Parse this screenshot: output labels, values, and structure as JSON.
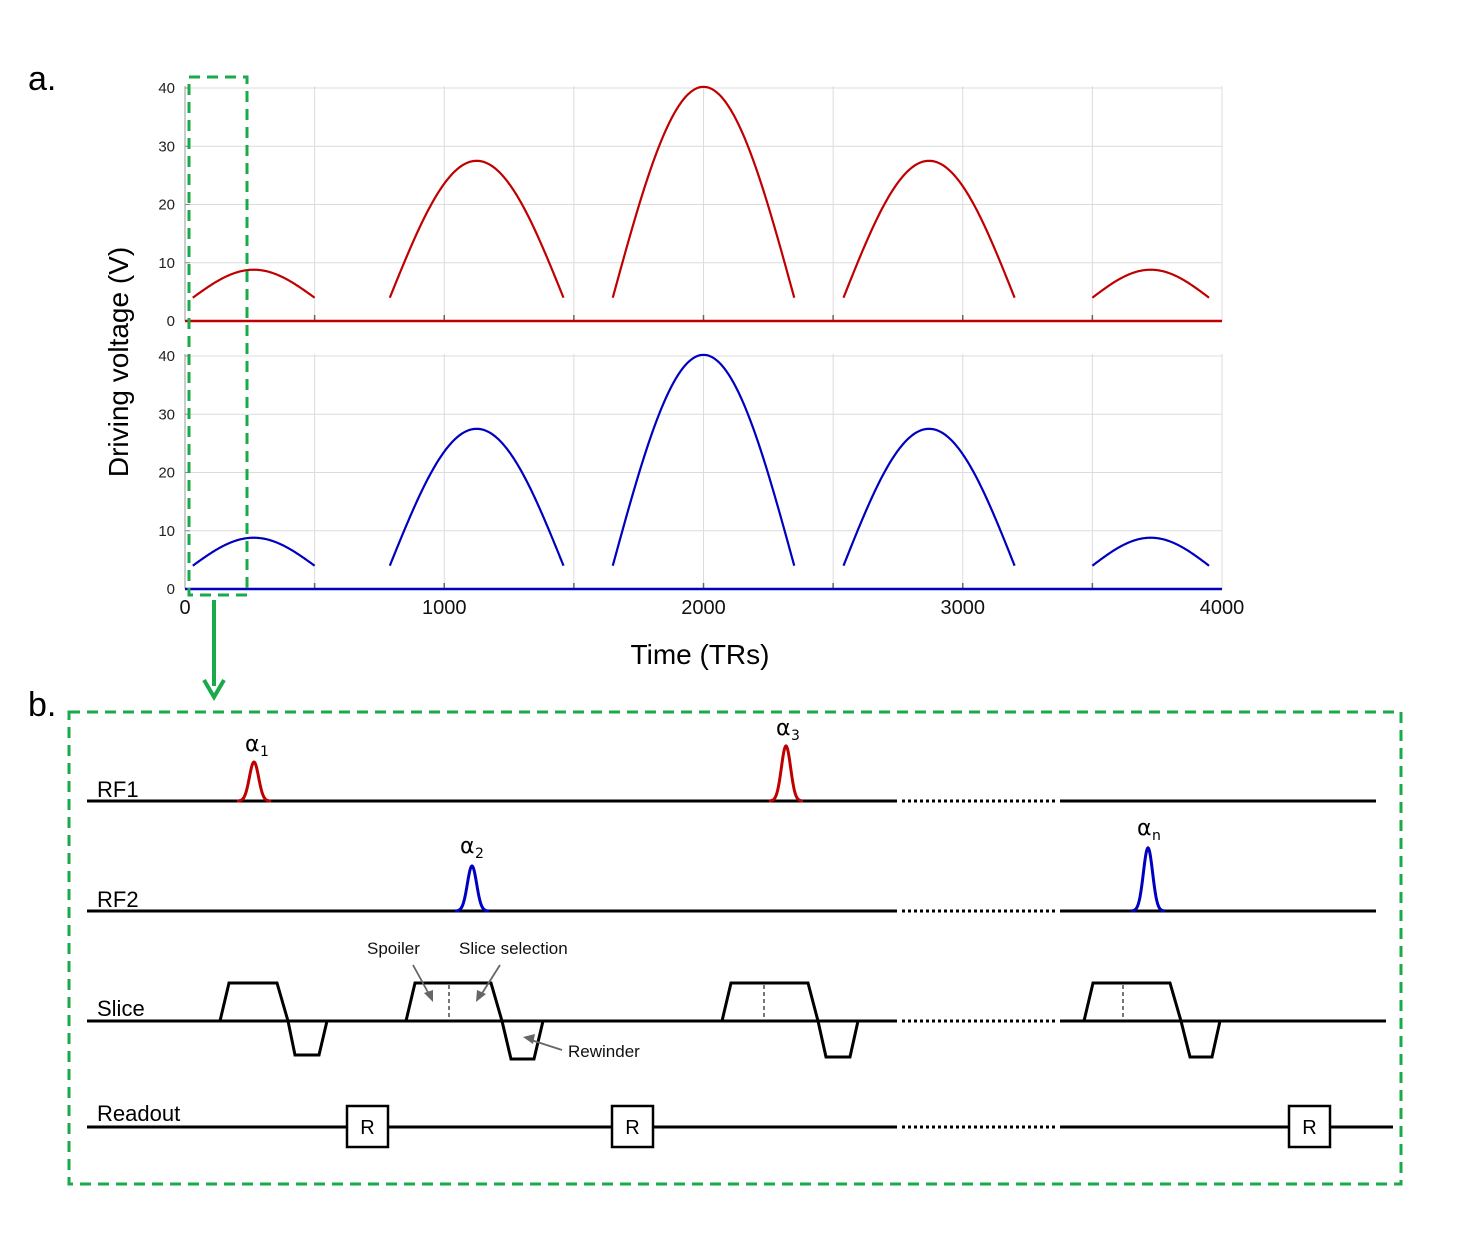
{
  "panel_a": {
    "label": "a.",
    "ylabel": "Driving voltage (V)",
    "xlabel": "Time (TRs)",
    "chart_data": [
      {
        "type": "line",
        "series": [
          {
            "color": "#c00000",
            "segments": [
              {
                "x_start": 30,
                "x_end": 500,
                "y_peak": 8.8,
                "y_edge": 4.0
              },
              {
                "x_start": 790,
                "x_end": 1460,
                "y_peak": 27.5,
                "y_edge": 4.0
              },
              {
                "x_start": 1650,
                "x_end": 2350,
                "y_peak": 40.2,
                "y_edge": 4.0
              },
              {
                "x_start": 2540,
                "x_end": 3200,
                "y_peak": 27.5,
                "y_edge": 4.0
              },
              {
                "x_start": 3500,
                "x_end": 3950,
                "y_peak": 8.8,
                "y_edge": 4.0
              }
            ]
          }
        ],
        "ylim": [
          0,
          40
        ],
        "yticks": [
          "0",
          "10",
          "20",
          "30",
          "40"
        ],
        "xlim": [
          0,
          4000
        ],
        "grid": true
      },
      {
        "type": "line",
        "series": [
          {
            "color": "#0000c0",
            "segments": [
              {
                "x_start": 30,
                "x_end": 500,
                "y_peak": 8.8,
                "y_edge": 4.0
              },
              {
                "x_start": 790,
                "x_end": 1460,
                "y_peak": 27.5,
                "y_edge": 4.0
              },
              {
                "x_start": 1650,
                "x_end": 2350,
                "y_peak": 40.2,
                "y_edge": 4.0
              },
              {
                "x_start": 2540,
                "x_end": 3200,
                "y_peak": 27.5,
                "y_edge": 4.0
              },
              {
                "x_start": 3500,
                "x_end": 3950,
                "y_peak": 8.8,
                "y_edge": 4.0
              }
            ]
          }
        ],
        "ylim": [
          0,
          40
        ],
        "yticks": [
          "0",
          "10",
          "20",
          "30",
          "40"
        ],
        "xlim": [
          0,
          4000
        ],
        "xticks": [
          "0",
          "1000",
          "2000",
          "3000",
          "4000"
        ],
        "grid": true
      }
    ]
  },
  "panel_b": {
    "label": "b.",
    "rows": {
      "rf1": "RF1",
      "rf2": "RF2",
      "slice": "Slice",
      "readout": "Readout"
    },
    "pulses": [
      {
        "symbol": "α",
        "sub": "1",
        "color": "#c00000"
      },
      {
        "symbol": "α",
        "sub": "2",
        "color": "#0000c0"
      },
      {
        "symbol": "α",
        "sub": "3",
        "color": "#c00000"
      },
      {
        "symbol": "α",
        "sub": "n",
        "color": "#0000c0"
      }
    ],
    "annotations": {
      "spoiler": "Spoiler",
      "slice_selection": "Slice selection",
      "rewinder": "Rewinder"
    },
    "readout_label": "R",
    "colors": {
      "highlight": "#1aaa4a"
    }
  }
}
